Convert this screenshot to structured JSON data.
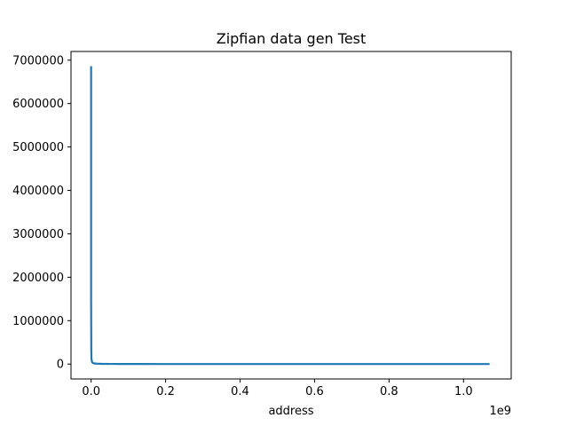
{
  "chart_data": {
    "type": "line",
    "title": "Zipfian data gen Test",
    "xlabel": "address",
    "ylabel": "",
    "x_offset_label": "1e9",
    "xlim": [
      -0.054,
      1.128
    ],
    "ylim": [
      -343000,
      7200000
    ],
    "x_ticks": [
      0.0,
      0.2,
      0.4,
      0.6,
      0.8,
      1.0
    ],
    "x_tick_labels": [
      "0.0",
      "0.2",
      "0.4",
      "0.6",
      "0.8",
      "1.0"
    ],
    "y_ticks": [
      0,
      1000000,
      2000000,
      3000000,
      4000000,
      5000000,
      6000000,
      7000000
    ],
    "y_tick_labels": [
      "0",
      "1000000",
      "2000000",
      "3000000",
      "4000000",
      "5000000",
      "6000000",
      "7000000"
    ],
    "grid": false,
    "series": [
      {
        "color": "#1f77b4",
        "x": [
          0.0,
          0.0,
          0.0005,
          0.001,
          0.002,
          0.003,
          0.005,
          0.008,
          0.015,
          0.03,
          0.05,
          0.08,
          0.12,
          0.2,
          0.4,
          0.6,
          0.8,
          1.0,
          1.07
        ],
        "y": [
          6860000,
          1500000,
          300000,
          120000,
          60000,
          40000,
          25000,
          15000,
          9000,
          5000,
          3000,
          2000,
          1500,
          1000,
          600,
          400,
          300,
          200,
          150
        ]
      }
    ]
  }
}
